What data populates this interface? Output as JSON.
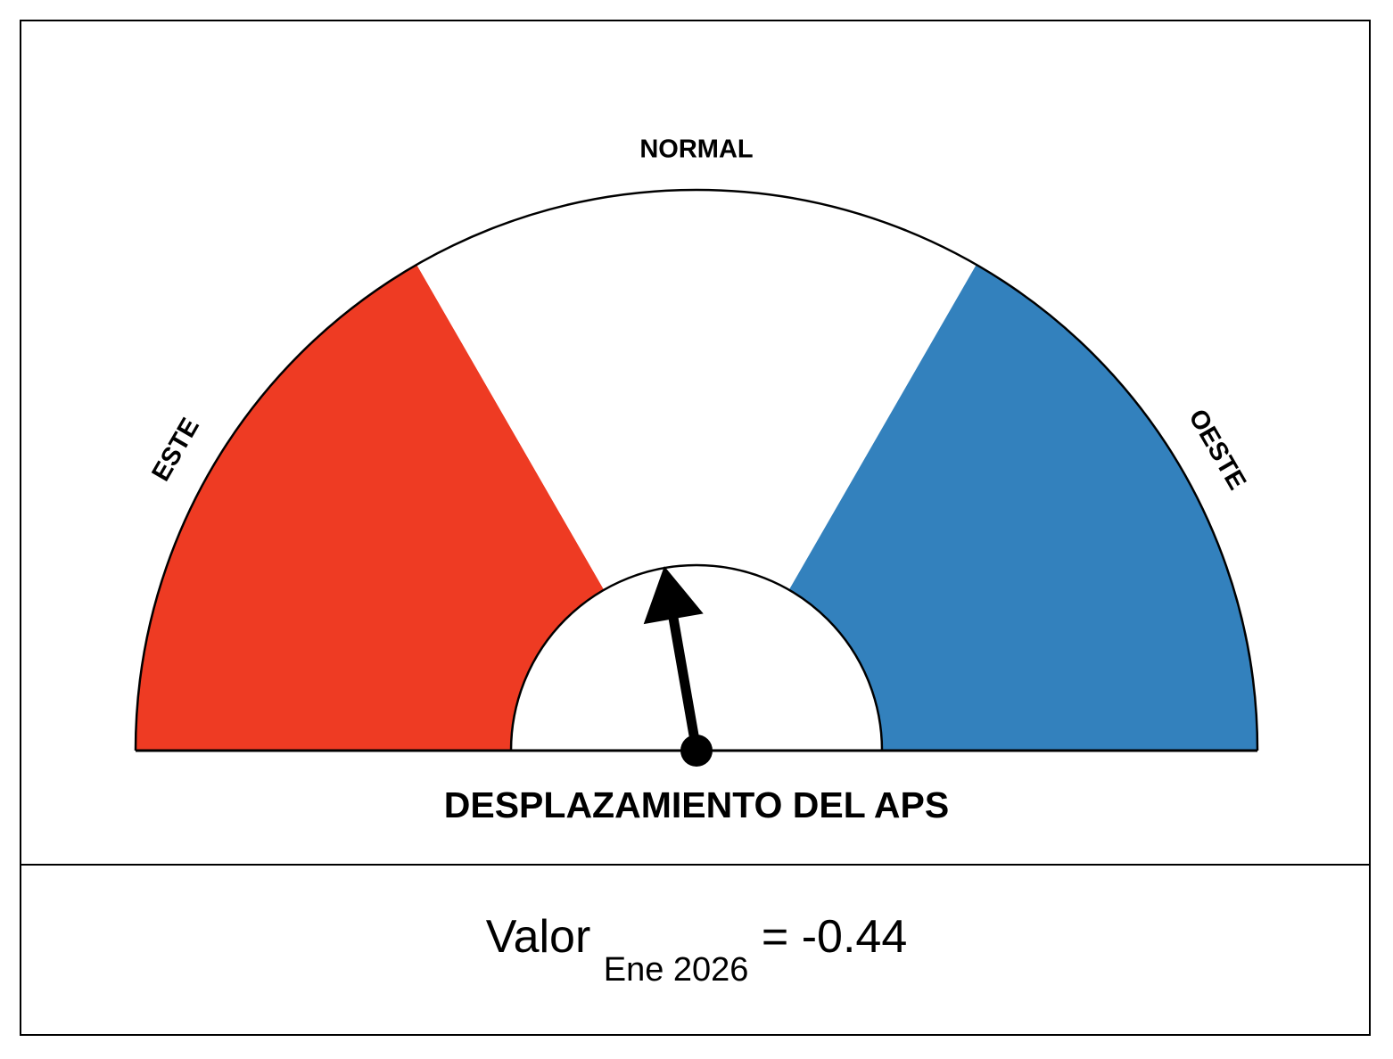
{
  "chart_data": {
    "type": "gauge",
    "title": "DESPLAZAMIENTO DEL APS",
    "value": -0.44,
    "range": [
      -4,
      4
    ],
    "zones": [
      {
        "label": "ESTE",
        "from": -4,
        "to": -1.33,
        "color": "#ee3b23"
      },
      {
        "label": "NORMAL",
        "from": -1.33,
        "to": 1.33,
        "color": "#ffffff"
      },
      {
        "label": "OESTE",
        "from": 1.33,
        "to": 4,
        "color": "#3381bd"
      }
    ],
    "needle_color": "#000000"
  },
  "readout": {
    "prefix": "Valor",
    "period": "Ene 2026",
    "suffix": "= -0.44"
  }
}
